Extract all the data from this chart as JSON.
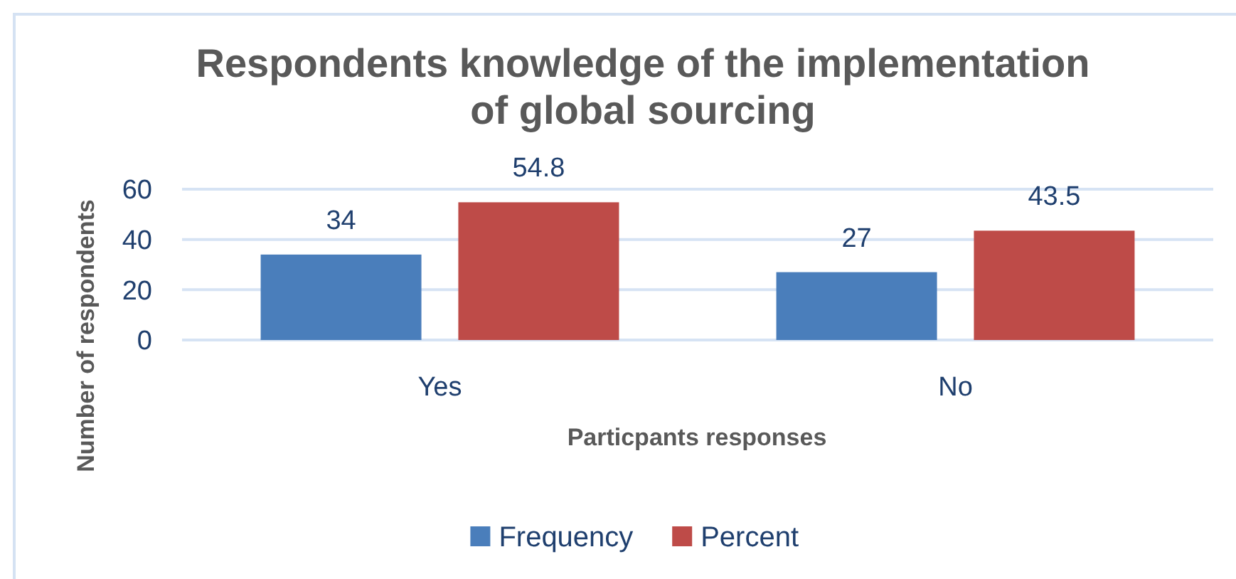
{
  "chart_data": {
    "type": "bar",
    "title": "Respondents knowledge of the implementation of global sourcing",
    "xlabel": "Particpants responses",
    "ylabel": "Number of respondents",
    "categories": [
      "Yes",
      "No"
    ],
    "series": [
      {
        "name": "Frequency",
        "color": "#4a7ebb",
        "values": [
          34,
          27
        ]
      },
      {
        "name": "Percent",
        "color": "#be4b48",
        "values": [
          54.8,
          43.5
        ]
      }
    ],
    "ylim": [
      0,
      60
    ],
    "yticks": [
      0,
      20,
      40,
      60
    ],
    "grid": "y",
    "legend": "bottom",
    "data_labels": true
  }
}
